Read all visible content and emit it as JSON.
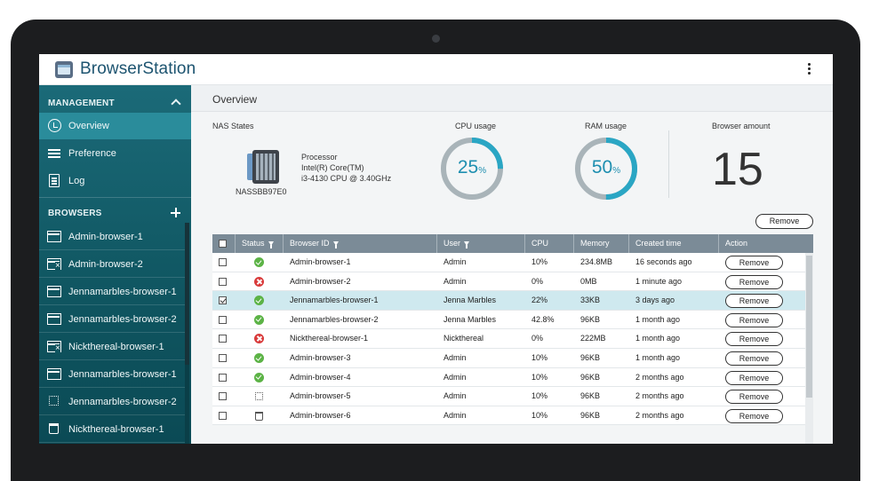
{
  "app": {
    "title": "BrowserStation"
  },
  "sidebar": {
    "management_heading": "MANAGEMENT",
    "nav": [
      {
        "label": "Overview",
        "icon": "overview-icon",
        "active": true
      },
      {
        "label": "Preference",
        "icon": "preference-icon"
      },
      {
        "label": "Log",
        "icon": "log-icon"
      }
    ],
    "browsers_heading": "BROWSERS",
    "browsers": [
      {
        "label": "Admin-browser-1",
        "icon": "browser-window-icon"
      },
      {
        "label": "Admin-browser-2",
        "icon": "browser-error-icon"
      },
      {
        "label": "Jennamarbles-browser-1",
        "icon": "browser-window-icon"
      },
      {
        "label": "Jennamarbles-browser-2",
        "icon": "browser-window-icon"
      },
      {
        "label": "Nickthereal-browser-1",
        "icon": "browser-error-icon"
      },
      {
        "label": "Jennamarbles-browser-1",
        "icon": "browser-window-icon"
      },
      {
        "label": "Jennamarbles-browser-2",
        "icon": "browser-loading-icon"
      },
      {
        "label": "Nickthereal-browser-1",
        "icon": "trash-icon"
      }
    ]
  },
  "main": {
    "title": "Overview",
    "nas": {
      "label": "NAS States",
      "processor_label": "Processor",
      "processor_line1": "Intel(R) Core(TM)",
      "processor_line2": "i3-4130 CPU @ 3.40GHz",
      "device_name": "NASSBB97E0"
    },
    "cpu": {
      "label": "CPU usage",
      "value": "25",
      "unit": "%",
      "fraction": 0.25
    },
    "ram": {
      "label": "RAM usage",
      "value": "50",
      "unit": "%",
      "fraction": 0.5
    },
    "browser_amount": {
      "label": "Browser amount",
      "value": "15"
    },
    "remove_button": "Remove"
  },
  "table": {
    "columns": [
      "Status",
      "Browser ID",
      "User",
      "CPU",
      "Memory",
      "Created time",
      "Action"
    ],
    "rows": [
      {
        "checked": false,
        "status": "ok",
        "id": "Admin-browser-1",
        "user": "Admin",
        "cpu": "10%",
        "memory": "234.8MB",
        "created": "16 seconds ago",
        "action": "Remove"
      },
      {
        "checked": false,
        "status": "error",
        "id": "Admin-browser-2",
        "user": "Admin",
        "cpu": "0%",
        "memory": "0MB",
        "created": "1 minute ago",
        "action": "Remove"
      },
      {
        "checked": true,
        "status": "ok",
        "id": "Jennamarbles-browser-1",
        "user": "Jenna Marbles",
        "cpu": "22%",
        "memory": "33KB",
        "created": "3 days ago",
        "action": "Remove"
      },
      {
        "checked": false,
        "status": "ok",
        "id": "Jennamarbles-browser-2",
        "user": "Jenna Marbles",
        "cpu": "42.8%",
        "memory": "96KB",
        "created": "1 month ago",
        "action": "Remove"
      },
      {
        "checked": false,
        "status": "error",
        "id": "Nickthereal-browser-1",
        "user": "Nickthereal",
        "cpu": "0%",
        "memory": "222MB",
        "created": "1 month ago",
        "action": "Remove"
      },
      {
        "checked": false,
        "status": "ok",
        "id": "Admin-browser-3",
        "user": "Admin",
        "cpu": "10%",
        "memory": "96KB",
        "created": "1 month ago",
        "action": "Remove"
      },
      {
        "checked": false,
        "status": "ok",
        "id": "Admin-browser-4",
        "user": "Admin",
        "cpu": "10%",
        "memory": "96KB",
        "created": "2 months ago",
        "action": "Remove"
      },
      {
        "checked": false,
        "status": "loading",
        "id": "Admin-browser-5",
        "user": "Admin",
        "cpu": "10%",
        "memory": "96KB",
        "created": "2 months ago",
        "action": "Remove"
      },
      {
        "checked": false,
        "status": "deleting",
        "id": "Admin-browser-6",
        "user": "Admin",
        "cpu": "10%",
        "memory": "96KB",
        "created": "2 months ago",
        "action": "Remove"
      }
    ]
  },
  "colors": {
    "accent": "#1e8fb0",
    "sidebar": "#0f5560",
    "selected_row": "#cfe9ef",
    "ok": "#5cb346",
    "error": "#d93b3b"
  }
}
